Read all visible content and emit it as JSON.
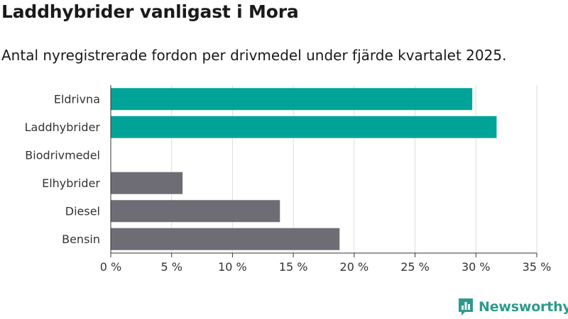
{
  "chart_data": {
    "type": "bar",
    "orientation": "horizontal",
    "title": "Laddhybrider vanligast i Mora",
    "subtitle": "Antal nyregistrerade fordon per drivmedel under fjärde kvartalet 2025.",
    "categories": [
      "Eldrivna",
      "Laddhybrider",
      "Biodrivmedel",
      "Elhybrider",
      "Diesel",
      "Bensin"
    ],
    "values": [
      29.7,
      31.7,
      0,
      5.9,
      13.9,
      18.8
    ],
    "unit": "%",
    "xlim": [
      0,
      35
    ],
    "xticks": [
      0,
      5,
      10,
      15,
      20,
      25,
      30,
      35
    ],
    "xtick_labels": [
      "0 %",
      "5 %",
      "10 %",
      "15 %",
      "20 %",
      "25 %",
      "30 %",
      "35 %"
    ],
    "bar_colors": [
      "#00a398",
      "#00a398",
      "#00a398",
      "#6e6d75",
      "#6e6d75",
      "#6e6d75"
    ],
    "grid": true,
    "xlabel": "",
    "ylabel": ""
  },
  "logo": {
    "text": "Newsworthy",
    "icon": "bar-chart-icon",
    "color": "#2e9a8e"
  },
  "colors": {
    "grid": "#dddddd",
    "axis": "#333333",
    "label": "#333333"
  }
}
